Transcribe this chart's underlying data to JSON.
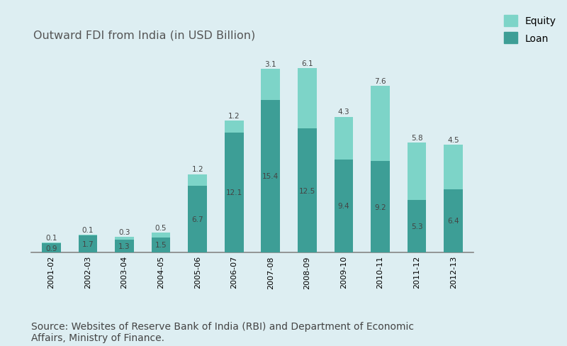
{
  "categories": [
    "2001-02",
    "2002-03",
    "2003-04",
    "2004-05",
    "2005-06",
    "2006-07",
    "2007-08",
    "2008-09",
    "2009-10",
    "2010-11",
    "2011-12",
    "2012-13"
  ],
  "equity": [
    0.1,
    0.1,
    0.3,
    0.5,
    1.2,
    1.2,
    3.1,
    6.1,
    4.3,
    7.6,
    5.8,
    4.5
  ],
  "loan": [
    0.9,
    1.7,
    1.3,
    1.5,
    6.7,
    12.1,
    15.4,
    12.5,
    9.4,
    9.2,
    5.3,
    6.4
  ],
  "equity_color": "#7dd4c8",
  "loan_color": "#3d9e96",
  "background_color": "#ddeef2",
  "title": "Outward FDI from India (in USD Billion)",
  "title_fontsize": 11.5,
  "source_text": "Source: Websites of Reserve Bank of India (RBI) and Department of Economic\nAffairs, Ministry of Finance.",
  "legend_equity": "Equity",
  "legend_loan": "Loan",
  "bar_width": 0.52,
  "label_fontsize": 7.5,
  "tick_fontsize": 8,
  "source_fontsize": 10,
  "label_color_dark": "#444444",
  "label_color_white": "#ffffff"
}
